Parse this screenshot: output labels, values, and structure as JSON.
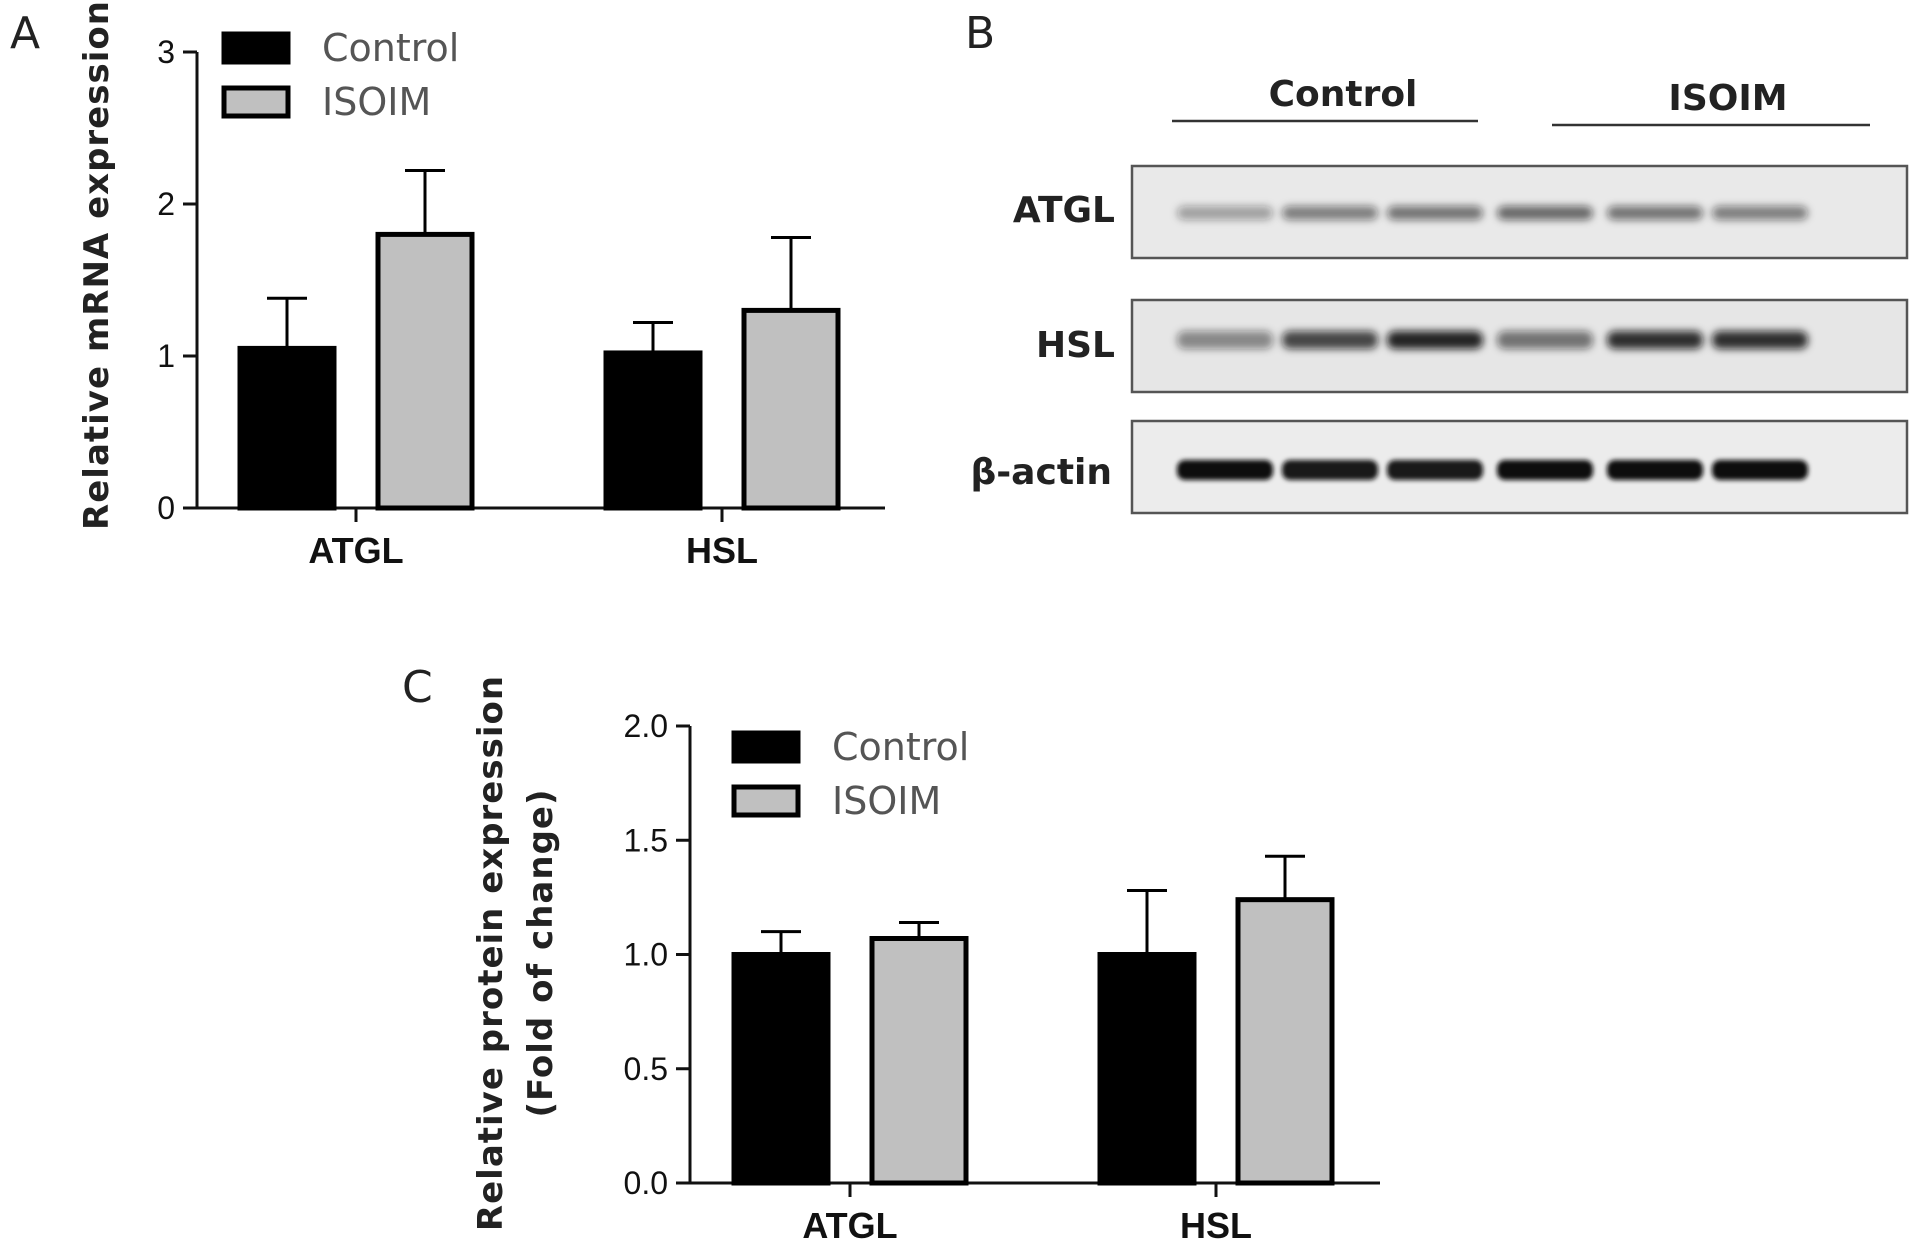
{
  "panels": {
    "a": {
      "letter": "A"
    },
    "b": {
      "letter": "B"
    },
    "c": {
      "letter": "C"
    }
  },
  "colors": {
    "control": "#000000",
    "isoim": "#c0c0c0"
  },
  "chart_data": [
    {
      "id": "a",
      "type": "bar",
      "ylabel": "Relative mRNA expression",
      "xlabel": "",
      "ylim": [
        0,
        3
      ],
      "yticks": [
        "0",
        "1",
        "2",
        "3"
      ],
      "yticks_values": [
        0,
        1,
        2,
        3
      ],
      "categories": [
        "ATGL",
        "HSL"
      ],
      "legend_position": "top-left",
      "series": [
        {
          "name": "Control",
          "values": [
            1.05,
            1.02
          ],
          "errors": [
            0.33,
            0.2
          ]
        },
        {
          "name": "ISOIM",
          "values": [
            1.8,
            1.3
          ],
          "errors": [
            0.42,
            0.48
          ]
        }
      ]
    },
    {
      "id": "c",
      "type": "bar",
      "ylabel": "Relative protein expression",
      "ylabel2": "(Fold of change)",
      "xlabel": "",
      "ylim": [
        0,
        2
      ],
      "yticks": [
        "0.0",
        "0.5",
        "1.0",
        "1.5",
        "2.0"
      ],
      "yticks_values": [
        0,
        0.5,
        1,
        1.5,
        2
      ],
      "categories": [
        "ATGL",
        "HSL"
      ],
      "legend_position": "top-left",
      "series": [
        {
          "name": "Control",
          "values": [
            1.0,
            1.0
          ],
          "errors": [
            0.1,
            0.28
          ]
        },
        {
          "name": "ISOIM",
          "values": [
            1.07,
            1.24
          ],
          "errors": [
            0.07,
            0.19
          ]
        }
      ]
    }
  ],
  "blot": {
    "groups": [
      "Control",
      "ISOIM"
    ],
    "rows": [
      "ATGL",
      "HSL",
      "β-actin"
    ],
    "lanes_per_group": 3
  }
}
